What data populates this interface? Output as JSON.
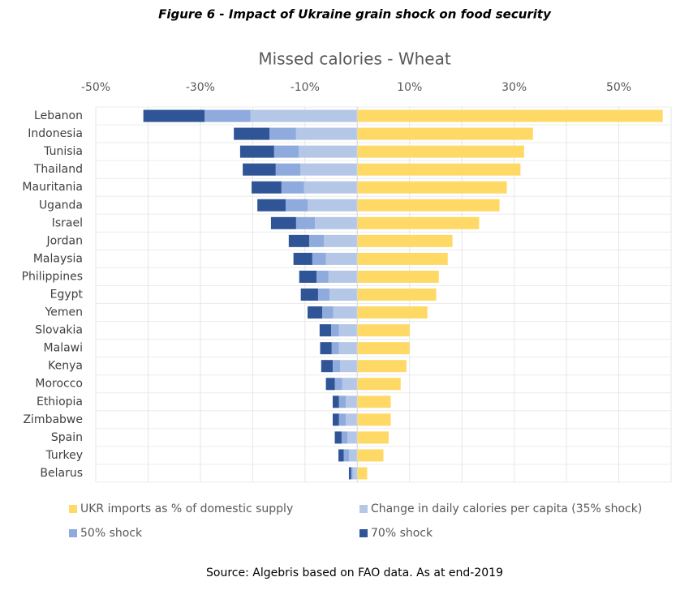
{
  "chart_data": {
    "type": "diverging_stacked_bar",
    "figure_title": "Figure 6 - Impact of Ukraine grain shock on food security",
    "title": "Missed calories - Wheat",
    "source": "Source: Algebris based on FAO data. As at end-2019",
    "categories": [
      "Lebanon",
      "Indonesia",
      "Tunisia",
      "Thailand",
      "Mauritania",
      "Uganda",
      "Israel",
      "Jordan",
      "Malaysia",
      "Philippines",
      "Egypt",
      "Yemen",
      "Slovakia",
      "Malawi",
      "Kenya",
      "Morocco",
      "Ethiopia",
      "Zimbabwe",
      "Spain",
      "Turkey",
      "Belarus"
    ],
    "series": [
      {
        "name": "UKR imports as % of domestic supply",
        "color": "#FFD966",
        "values": [
          58.4,
          33.6,
          31.9,
          31.2,
          28.6,
          27.2,
          23.3,
          18.2,
          17.3,
          15.6,
          15.1,
          13.4,
          10.0,
          10.0,
          9.4,
          8.3,
          6.4,
          6.4,
          6.0,
          5.0,
          1.9
        ]
      },
      {
        "name": "Change in daily calories per capita (35% shock)",
        "color": "#B4C7E7",
        "values": [
          -20.4,
          -11.7,
          -11.2,
          -10.9,
          -10.2,
          -9.5,
          -8.1,
          -6.4,
          -6.0,
          -5.5,
          -5.3,
          -4.6,
          -3.5,
          -3.5,
          -3.3,
          -2.9,
          -2.2,
          -2.2,
          -1.9,
          -1.6,
          -0.9
        ]
      },
      {
        "name": "50% shock",
        "color": "#8FAADC",
        "values": [
          -8.8,
          -5.1,
          -4.7,
          -4.7,
          -4.3,
          -4.2,
          -3.6,
          -2.8,
          -2.6,
          -2.3,
          -2.2,
          -2.1,
          -1.5,
          -1.4,
          -1.4,
          -1.4,
          -1.3,
          -1.3,
          -1.1,
          -1.0,
          -0.3
        ]
      },
      {
        "name": "70% shock",
        "color": "#2F5597",
        "values": [
          -11.7,
          -6.8,
          -6.5,
          -6.3,
          -5.7,
          -5.4,
          -4.8,
          -3.9,
          -3.6,
          -3.3,
          -3.3,
          -2.8,
          -2.2,
          -2.2,
          -2.2,
          -1.7,
          -1.2,
          -1.2,
          -1.3,
          -1.0,
          -0.4
        ]
      }
    ],
    "xlim": [
      -50,
      60
    ],
    "xticks": [
      {
        "value": -50,
        "label": "-50%"
      },
      {
        "value": -30,
        "label": "-30%"
      },
      {
        "value": -10,
        "label": "-10%"
      },
      {
        "value": 10,
        "label": "10%"
      },
      {
        "value": 30,
        "label": "30%"
      },
      {
        "value": 50,
        "label": "50%"
      }
    ],
    "minor_xticks": [
      -40,
      -20,
      0,
      20,
      40,
      60
    ],
    "grid": true,
    "legend": "bottom"
  }
}
